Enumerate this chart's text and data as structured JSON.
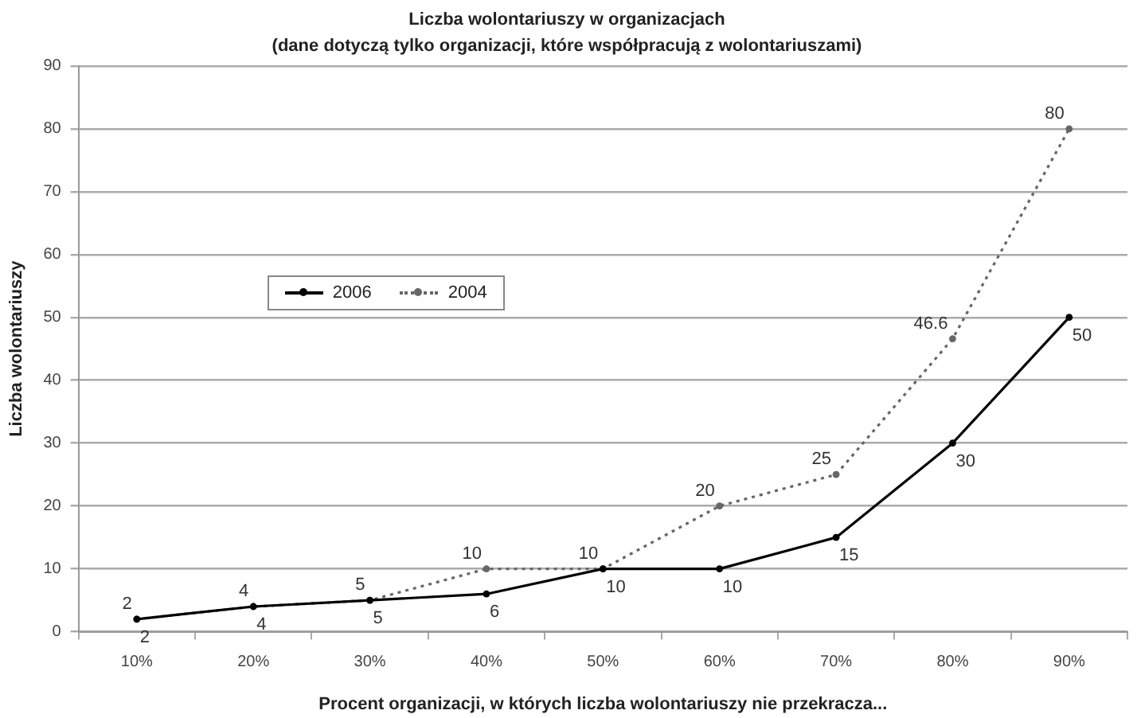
{
  "chart_data": {
    "type": "line",
    "title": "Liczba wolontariuszy w organizacjach",
    "subtitle": "(dane dotyczą tylko organizacji, które współpracują z wolontariuszami)",
    "xlabel": "Procent organizacji, w których liczba wolontariuszy nie przekracza...",
    "ylabel": "Liczba wolontariuszy",
    "categories": [
      "10%",
      "20%",
      "30%",
      "40%",
      "50%",
      "60%",
      "70%",
      "80%",
      "90%"
    ],
    "series": [
      {
        "name": "2006",
        "color": "#000000",
        "line_style": "solid",
        "values": [
          2,
          4,
          5,
          6,
          10,
          10,
          15,
          30,
          50
        ]
      },
      {
        "name": "2004",
        "color": "#666666",
        "line_style": "dotted",
        "values": [
          2,
          4,
          5,
          10,
          10,
          20,
          25,
          46.6,
          80
        ]
      }
    ],
    "ylim": [
      0,
      90
    ],
    "yticks": [
      0,
      10,
      20,
      30,
      40,
      50,
      60,
      70,
      80,
      90
    ],
    "grid": "y",
    "legend": "left",
    "marker": "circle",
    "data_labels": true
  }
}
